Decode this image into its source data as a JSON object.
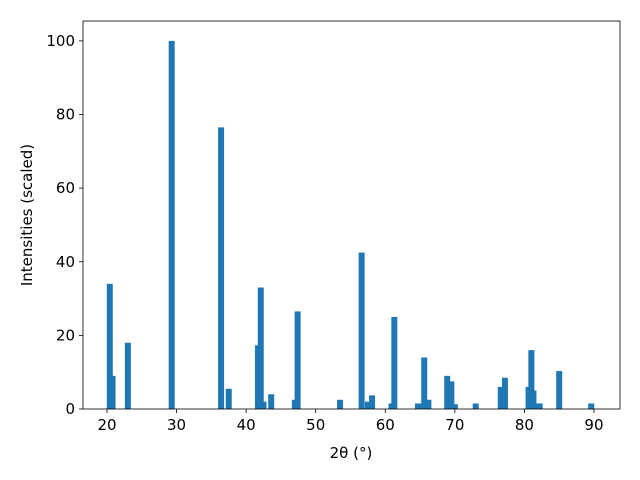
{
  "chart_data": {
    "type": "bar",
    "xlabel": "2θ (°)",
    "ylabel": "Intensities (scaled)",
    "x": [
      20.4,
      20.8,
      23.0,
      29.3,
      36.4,
      37.5,
      41.7,
      42.1,
      42.5,
      43.6,
      47.0,
      47.4,
      53.5,
      56.6,
      57.5,
      58.1,
      60.9,
      61.3,
      64.7,
      65.1,
      65.6,
      66.2,
      68.9,
      69.5,
      70.0,
      73.0,
      76.6,
      77.2,
      80.6,
      81.0,
      81.3,
      81.7,
      82.2,
      85.0,
      89.6
    ],
    "values": [
      34,
      9,
      18,
      100,
      76.5,
      5.5,
      17.3,
      33,
      2,
      4,
      2.5,
      26.5,
      2.5,
      42.5,
      2,
      3.7,
      1.5,
      25,
      1.5,
      1.5,
      14,
      2.5,
      9,
      7.5,
      1.3,
      1.5,
      6,
      8.5,
      6,
      16,
      5,
      1.5,
      1.5,
      10.3,
      1.5
    ],
    "color": "#1f77b4",
    "xlim": [
      16.55,
      93.74
    ],
    "ylim": [
      0,
      105.4
    ],
    "xticks": [
      20,
      30,
      40,
      50,
      60,
      70,
      80,
      90
    ],
    "yticks": [
      0,
      20,
      40,
      60,
      80,
      100
    ]
  }
}
